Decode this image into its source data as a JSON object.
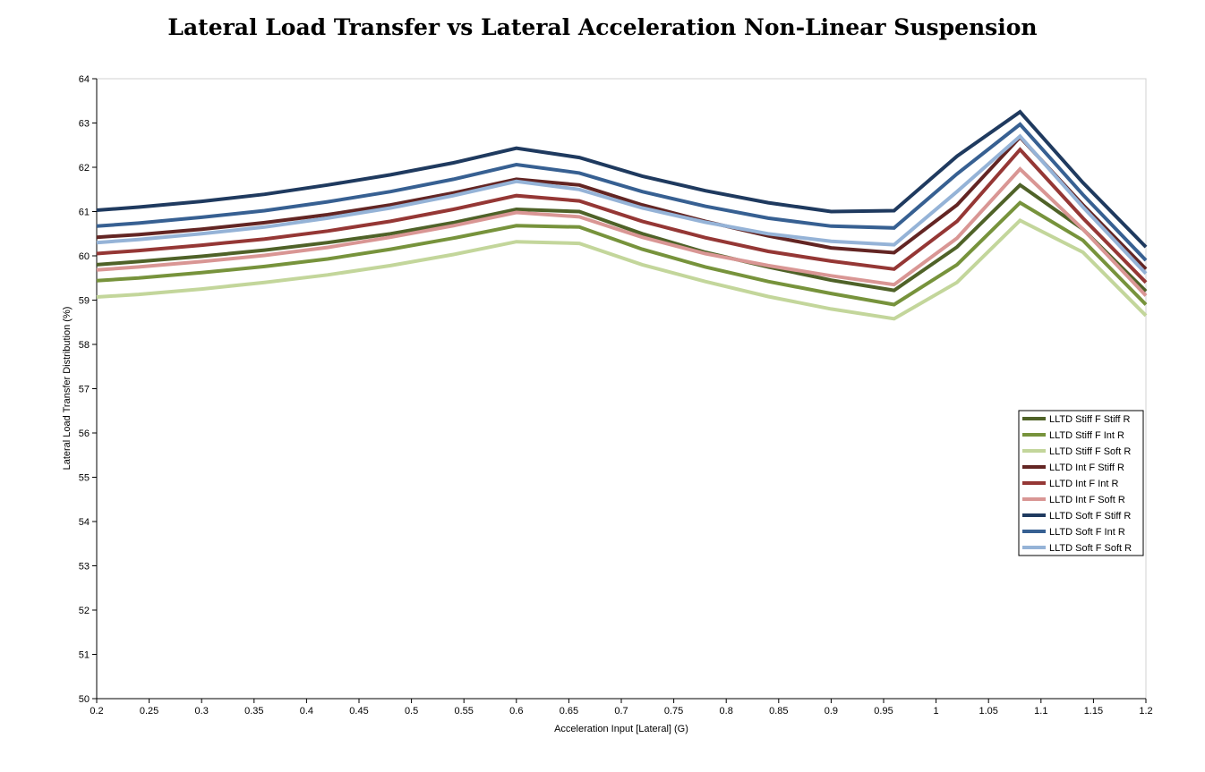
{
  "chart_data": {
    "type": "line",
    "title": "Lateral Load Transfer vs Lateral Acceleration Non-Linear Suspension",
    "xlabel": "Acceleration Input [Lateral] (G)",
    "ylabel": "Lateral Load Transfer Distribution (%)",
    "xlim": [
      0.2,
      1.2
    ],
    "ylim": [
      50,
      64
    ],
    "xticks": [
      "0.2",
      "0.25",
      "0.3",
      "0.35",
      "0.4",
      "0.45",
      "0.5",
      "0.55",
      "0.6",
      "0.65",
      "0.7",
      "0.75",
      "0.8",
      "0.85",
      "0.9",
      "0.95",
      "1",
      "1.05",
      "1.1",
      "1.15",
      "1.2"
    ],
    "yticks": [
      "50",
      "51",
      "52",
      "53",
      "54",
      "55",
      "56",
      "57",
      "58",
      "59",
      "60",
      "61",
      "62",
      "63",
      "64"
    ],
    "grid": false,
    "legend_position": "right",
    "x": [
      0.2,
      0.24,
      0.3,
      0.36,
      0.42,
      0.48,
      0.54,
      0.6,
      0.66,
      0.72,
      0.78,
      0.84,
      0.9,
      0.96,
      1.02,
      1.08,
      1.14,
      1.2
    ],
    "series": [
      {
        "name": "LLTD Stiff F Stiff R",
        "color": "#4f6228",
        "values": [
          59.8,
          59.87,
          59.99,
          60.13,
          60.3,
          60.5,
          60.75,
          61.05,
          61.0,
          60.5,
          60.08,
          59.75,
          59.45,
          59.22,
          60.2,
          61.6,
          60.6,
          59.2
        ]
      },
      {
        "name": "LLTD Stiff F Int R",
        "color": "#77933c",
        "values": [
          59.44,
          59.5,
          59.62,
          59.76,
          59.93,
          60.15,
          60.4,
          60.68,
          60.65,
          60.15,
          59.75,
          59.42,
          59.15,
          58.9,
          59.8,
          61.2,
          60.35,
          58.9
        ]
      },
      {
        "name": "LLTD Stiff F Soft R",
        "color": "#c3d69b",
        "values": [
          59.07,
          59.13,
          59.25,
          59.4,
          59.57,
          59.78,
          60.03,
          60.32,
          60.28,
          59.8,
          59.42,
          59.08,
          58.8,
          58.58,
          59.4,
          60.8,
          60.08,
          58.65
        ]
      },
      {
        "name": "LLTD Int F Stiff R",
        "color": "#632523",
        "values": [
          60.42,
          60.48,
          60.6,
          60.75,
          60.93,
          61.15,
          61.42,
          61.73,
          61.6,
          61.15,
          60.78,
          60.45,
          60.18,
          60.07,
          61.15,
          62.68,
          61.15,
          59.7
        ]
      },
      {
        "name": "LLTD Int F Int R",
        "color": "#953735",
        "values": [
          60.05,
          60.12,
          60.24,
          60.38,
          60.56,
          60.78,
          61.05,
          61.36,
          61.24,
          60.78,
          60.41,
          60.1,
          59.88,
          59.7,
          60.78,
          62.4,
          60.85,
          59.4
        ]
      },
      {
        "name": "LLTD Int F Soft R",
        "color": "#d99694",
        "values": [
          59.68,
          59.75,
          59.87,
          60.01,
          60.19,
          60.42,
          60.68,
          60.98,
          60.88,
          60.42,
          60.05,
          59.78,
          59.55,
          59.35,
          60.4,
          61.96,
          60.6,
          59.1
        ]
      },
      {
        "name": "LLTD Soft F Stiff R",
        "color": "#1f3a5f",
        "values": [
          61.03,
          61.1,
          61.23,
          61.39,
          61.6,
          61.83,
          62.1,
          62.43,
          62.22,
          61.8,
          61.47,
          61.2,
          61.0,
          61.02,
          62.25,
          63.25,
          61.65,
          60.2
        ]
      },
      {
        "name": "LLTD Soft F Int R",
        "color": "#376092",
        "values": [
          60.67,
          60.74,
          60.87,
          61.02,
          61.22,
          61.45,
          61.73,
          62.06,
          61.87,
          61.45,
          61.12,
          60.85,
          60.67,
          60.63,
          61.85,
          62.97,
          61.38,
          59.9
        ]
      },
      {
        "name": "LLTD Soft F Soft R",
        "color": "#95b3d7",
        "values": [
          60.3,
          60.37,
          60.5,
          60.65,
          60.85,
          61.08,
          61.36,
          61.68,
          61.5,
          61.08,
          60.76,
          60.5,
          60.33,
          60.25,
          61.45,
          62.7,
          61.1,
          59.6
        ]
      }
    ]
  }
}
